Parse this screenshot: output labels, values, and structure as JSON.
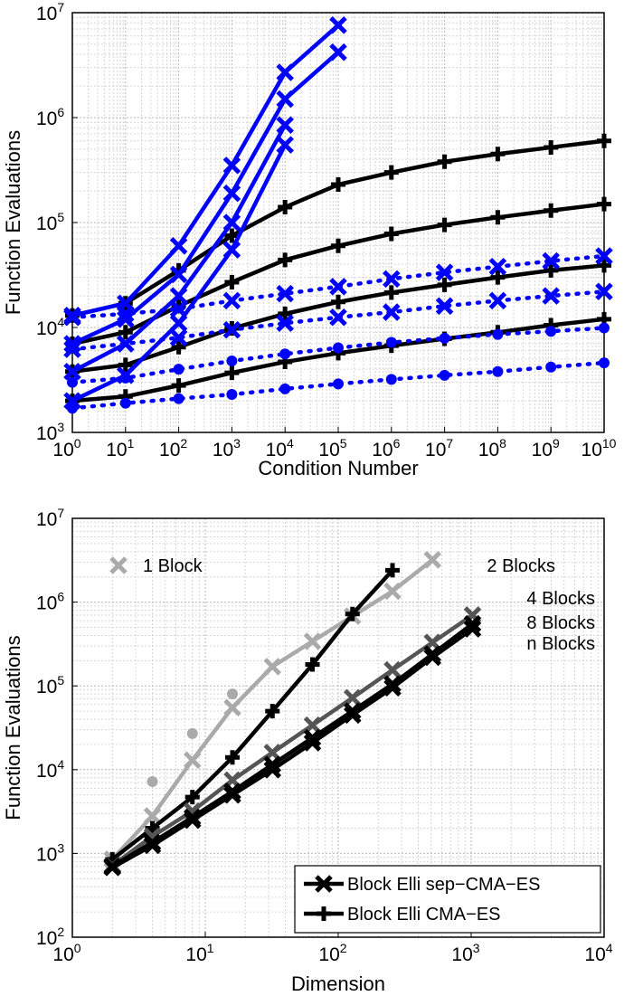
{
  "chart_data": [
    {
      "type": "line",
      "xlabel": "Condition Number",
      "ylabel": "Function Evaluations",
      "xscale": "log",
      "yscale": "log",
      "xlim": [
        1,
        10000000000
      ],
      "ylim": [
        1000,
        10000000
      ],
      "xtick_exponents": [
        "0",
        "1",
        "2",
        "3",
        "4",
        "5",
        "6",
        "7",
        "8",
        "9",
        "10"
      ],
      "ytick_exponents": [
        "3",
        "4",
        "5",
        "6",
        "7"
      ],
      "tick_base": "10",
      "grid": true,
      "colors": {
        "cma": "#000000",
        "sep": "#0000ff"
      },
      "series": [
        {
          "group": "cma",
          "marker": "plus",
          "style": "solid",
          "x": [
            1,
            10,
            100,
            1000,
            10000,
            100000,
            1000000,
            10000000,
            100000000,
            1000000000,
            10000000000
          ],
          "values": [
            13000,
            17000,
            35000,
            75000,
            140000,
            230000,
            300000,
            380000,
            450000,
            520000,
            600000
          ]
        },
        {
          "group": "cma",
          "marker": "plus",
          "style": "solid",
          "x": [
            1,
            10,
            100,
            1000,
            10000,
            100000,
            1000000,
            10000000,
            100000000,
            1000000000,
            10000000000
          ],
          "values": [
            7000,
            9000,
            16000,
            27000,
            44000,
            60000,
            78000,
            95000,
            112000,
            130000,
            150000
          ]
        },
        {
          "group": "cma",
          "marker": "plus",
          "style": "solid",
          "x": [
            1,
            10,
            100,
            1000,
            10000,
            100000,
            1000000,
            10000000,
            100000000,
            1000000000,
            10000000000
          ],
          "values": [
            3800,
            4400,
            6500,
            9800,
            13500,
            17500,
            21500,
            25500,
            30000,
            35000,
            39000
          ]
        },
        {
          "group": "cma",
          "marker": "plus",
          "style": "solid",
          "x": [
            1,
            10,
            100,
            1000,
            10000,
            100000,
            1000000,
            10000000,
            100000000,
            1000000000,
            10000000000
          ],
          "values": [
            2000,
            2200,
            2800,
            3700,
            4700,
            5700,
            6700,
            7800,
            9000,
            10500,
            12000
          ]
        },
        {
          "group": "sep",
          "marker": "x",
          "style": "solid",
          "x": [
            1,
            10,
            100,
            1000,
            10000,
            100000
          ],
          "values": [
            13000,
            17000,
            60000,
            350000,
            2700000,
            7600000
          ]
        },
        {
          "group": "sep",
          "marker": "x",
          "style": "solid",
          "x": [
            1,
            10,
            100,
            1000,
            10000,
            100000
          ],
          "values": [
            7000,
            12000,
            32000,
            190000,
            1500000,
            4200000
          ]
        },
        {
          "group": "sep",
          "marker": "x",
          "style": "solid",
          "x": [
            1,
            10,
            100,
            1000,
            10000
          ],
          "values": [
            3800,
            7000,
            20000,
            100000,
            850000
          ]
        },
        {
          "group": "sep",
          "marker": "x",
          "style": "solid",
          "x": [
            1,
            10,
            100,
            1000,
            10000
          ],
          "values": [
            2000,
            3500,
            11000,
            55000,
            550000
          ]
        },
        {
          "group": "sep",
          "marker": "x",
          "style": "dotted",
          "x": [
            1,
            10,
            100,
            1000,
            10000,
            100000,
            1000000,
            10000000,
            100000000,
            1000000000,
            10000000000
          ],
          "values": [
            12500,
            13500,
            15000,
            18000,
            21000,
            24500,
            29000,
            33500,
            38000,
            43000,
            48000
          ]
        },
        {
          "group": "sep",
          "marker": "x",
          "style": "dotted",
          "x": [
            1,
            10,
            100,
            1000,
            10000,
            100000,
            1000000,
            10000000,
            100000000,
            1000000000,
            10000000000
          ],
          "values": [
            6200,
            7000,
            8000,
            9500,
            11000,
            12500,
            14000,
            16000,
            18000,
            20000,
            22000
          ]
        },
        {
          "group": "sep",
          "marker": "circle",
          "style": "dotted",
          "x": [
            1,
            10,
            100,
            1000,
            10000,
            100000,
            1000000,
            10000000,
            100000000,
            1000000000,
            10000000000
          ],
          "values": [
            3000,
            3300,
            4000,
            4800,
            5600,
            6400,
            7200,
            7900,
            8600,
            9200,
            9900
          ]
        },
        {
          "group": "sep",
          "marker": "circle",
          "style": "dotted",
          "x": [
            1,
            10,
            100,
            1000,
            10000,
            100000,
            1000000,
            10000000,
            100000000,
            1000000000,
            10000000000
          ],
          "values": [
            1700,
            1900,
            2100,
            2300,
            2600,
            2900,
            3200,
            3500,
            3800,
            4200,
            4600
          ]
        }
      ]
    },
    {
      "type": "line",
      "xlabel": "Dimension",
      "ylabel": "Function Evaluations",
      "xscale": "log",
      "yscale": "log",
      "xlim": [
        1,
        10000
      ],
      "ylim": [
        100,
        10000000
      ],
      "xtick_exponents": [
        "0",
        "1",
        "2",
        "3",
        "4"
      ],
      "ytick_exponents": [
        "2",
        "3",
        "4",
        "5",
        "6",
        "7"
      ],
      "tick_base": "10",
      "grid": true,
      "annotations": [
        "1 Block",
        "2 Blocks",
        "4 Blocks",
        "8 Blocks",
        "n Blocks"
      ],
      "legend": {
        "position": "bottom-right",
        "entries": [
          {
            "label": "Block Elli sep−CMA−ES",
            "marker": "x"
          },
          {
            "label": "Block Elli CMA−ES",
            "marker": "plus"
          }
        ]
      },
      "colors": {
        "dark": "#000000",
        "mid": "#555555",
        "light": "#aaaaaa"
      },
      "series": [
        {
          "blocks": "1 Block",
          "marker": "x",
          "color": "light",
          "x": [
            2,
            4,
            8,
            16,
            32,
            64,
            128,
            256,
            512
          ],
          "values": [
            850,
            2800,
            13000,
            55000,
            170000,
            340000,
            680000,
            1350000,
            3200000
          ]
        },
        {
          "blocks": "1 Block",
          "marker": "circle",
          "color": "light",
          "style": "points",
          "x": [
            4,
            8,
            16
          ],
          "values": [
            7200,
            27000,
            80000
          ]
        },
        {
          "blocks": "2 Blocks",
          "marker": "plus",
          "color": "dark",
          "x": [
            2,
            4,
            8,
            16,
            32,
            64,
            128,
            256
          ],
          "values": [
            850,
            2000,
            4700,
            14000,
            50000,
            180000,
            720000,
            2400000
          ]
        },
        {
          "blocks": "4 Blocks",
          "marker": "x",
          "color": "mid",
          "x": [
            2,
            4,
            8,
            16,
            32,
            64,
            128,
            256,
            512,
            1024
          ],
          "values": [
            720,
            1600,
            3200,
            7500,
            16000,
            34000,
            72000,
            155000,
            330000,
            700000
          ]
        },
        {
          "blocks": "8 Blocks",
          "marker": "x",
          "color": "dark",
          "x": [
            2,
            4,
            8,
            16,
            32,
            64,
            128,
            256,
            512,
            1024
          ],
          "values": [
            700,
            1350,
            2700,
            5500,
            11500,
            24000,
            50000,
            105000,
            240000,
            550000
          ]
        },
        {
          "blocks": "n Blocks",
          "marker": "x",
          "color": "dark",
          "x": [
            2,
            4,
            8,
            16,
            32,
            64,
            128,
            256,
            512,
            1024
          ],
          "values": [
            680,
            1250,
            2500,
            5000,
            10000,
            21000,
            45000,
            95000,
            220000,
            480000
          ]
        }
      ]
    }
  ]
}
